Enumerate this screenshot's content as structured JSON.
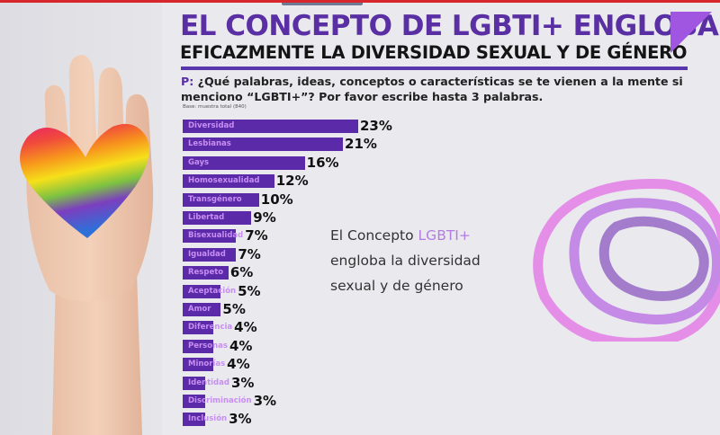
{
  "header": {
    "title_line1": "EL CONCEPTO DE LGBTI+ ENGLOBA",
    "title_line2": "EFICAZMENTE LA DIVERSIDAD SEXUAL Y DE GÉNERO"
  },
  "question": {
    "prefix": "P:",
    "text": " ¿Qué palabras, ideas, conceptos o características se te vienen a la mente si menciono “LGBTI+”? Por favor escribe hasta 3 palabras."
  },
  "base_note": "Base: muestra total (840)",
  "callout": {
    "part1": "El Concepto ",
    "highlight": "LGBTI+",
    "part2": "engloba la diversidad",
    "part3": "sexual y de género"
  },
  "colors": {
    "accent_purple": "#5a2fa4",
    "bar": "#5a2aa8",
    "bar_label": "#c88ef2",
    "highlight": "#b37de0",
    "top_bar_red": "#d8262d"
  },
  "image": {
    "description": "hand-holding-rainbow-heart-photo"
  },
  "chart_data": {
    "type": "bar",
    "orientation": "horizontal",
    "title": "EL CONCEPTO DE LGBTI+ ENGLOBA EFICAZMENTE LA DIVERSIDAD SEXUAL Y DE GÉNERO",
    "xlabel": "",
    "ylabel": "",
    "unit": "%",
    "xlim": [
      0,
      23
    ],
    "grid": false,
    "legend": "none",
    "categories": [
      "Diversidad",
      "Lesbianas",
      "Gays",
      "Homosexualidad",
      "Transgénero",
      "Libertad",
      "Bisexualidad",
      "Igualdad",
      "Respeto",
      "Aceptación",
      "Amor",
      "Diferencia",
      "Personas",
      "Minorías",
      "Identidad",
      "Discriminación",
      "Inclusión"
    ],
    "values": [
      23,
      21,
      16,
      12,
      10,
      9,
      7,
      7,
      6,
      5,
      5,
      4,
      4,
      4,
      3,
      3,
      3
    ],
    "value_labels": [
      "23%",
      "21%",
      "16%",
      "12%",
      "10%",
      "9%",
      "7%",
      "7%",
      "6%",
      "5%",
      "5%",
      "4%",
      "4%",
      "4%",
      "3%",
      "3%",
      "3%"
    ]
  }
}
